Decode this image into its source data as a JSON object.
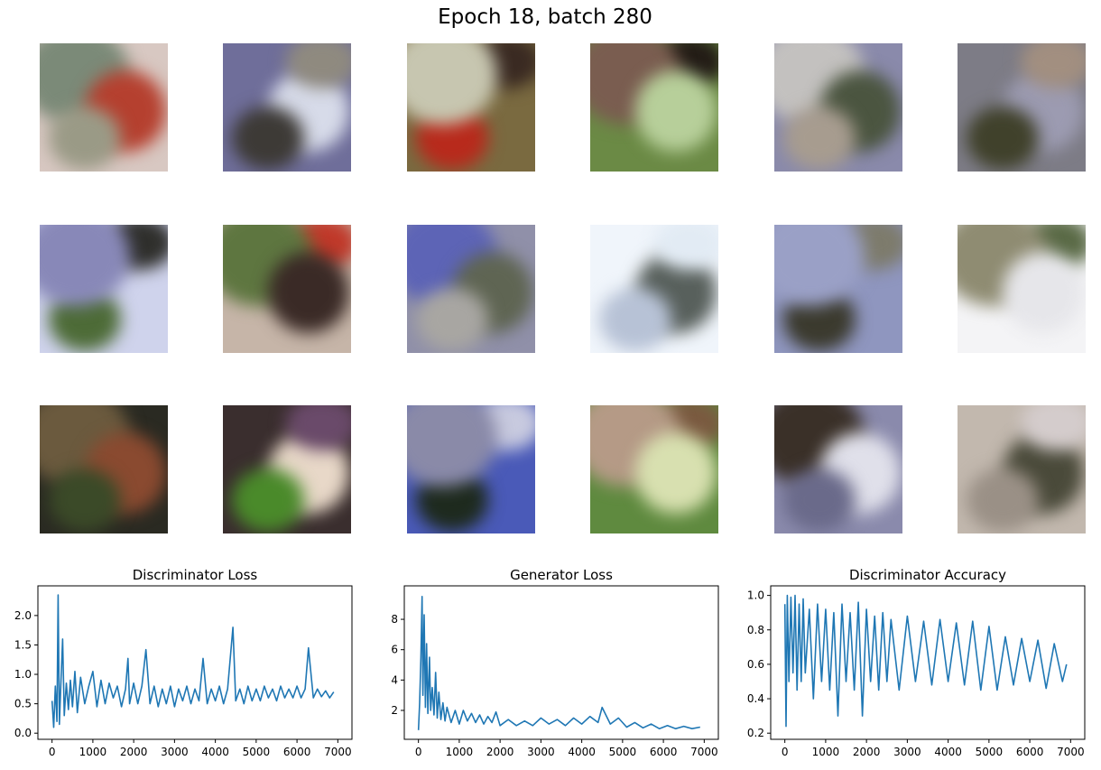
{
  "figure": {
    "title": "Epoch 18, batch 280"
  },
  "samples": [
    {
      "colors": [
        "#d8c8c2",
        "#7b8a78",
        "#b5402f",
        "#9a9a86"
      ]
    },
    {
      "colors": [
        "#6f6e9a",
        "#d7dbe9",
        "#3d3a36",
        "#8f8a7f"
      ]
    },
    {
      "colors": [
        "#7a6a40",
        "#b82a1c",
        "#3a2a22",
        "#c7c6b0"
      ]
    },
    {
      "colors": [
        "#6b8a45",
        "#231c16",
        "#7a5d50",
        "#b7cf9a"
      ]
    },
    {
      "colors": [
        "#8a8aab",
        "#c3c1bf",
        "#4b5540",
        "#a79c8f"
      ]
    },
    {
      "colors": [
        "#7d7c86",
        "#9c9bb1",
        "#40412b",
        "#a28f80"
      ]
    },
    {
      "colors": [
        "#cfd3ec",
        "#4d6b37",
        "#2f2f2c",
        "#8888b8"
      ]
    },
    {
      "colors": [
        "#c6b5a8",
        "#c0392a",
        "#5e7640",
        "#3a2a26"
      ]
    },
    {
      "colors": [
        "#9090a9",
        "#5d64b6",
        "#5f6553",
        "#a8a6a2"
      ]
    },
    {
      "colors": [
        "#f0f5fb",
        "#58605c",
        "#b7c2d6",
        "#e2ebf4"
      ]
    },
    {
      "colors": [
        "#8f96bf",
        "#3b3a2e",
        "#7d7b6c",
        "#9aa0c6"
      ]
    },
    {
      "colors": [
        "#f4f4f6",
        "#5a6a46",
        "#8f8c72",
        "#e6e6ea"
      ]
    },
    {
      "colors": [
        "#2a2a22",
        "#6b5a3e",
        "#8a4a30",
        "#3b4a28"
      ]
    },
    {
      "colors": [
        "#3a2e2e",
        "#e8d8c8",
        "#4a8a2a",
        "#6a4a6a"
      ]
    },
    {
      "colors": [
        "#4a5ab8",
        "#1e2a1e",
        "#c8cadf",
        "#8a8aa8"
      ]
    },
    {
      "colors": [
        "#5f8a3f",
        "#7a5a40",
        "#b59a86",
        "#d8e0b0"
      ]
    },
    {
      "colors": [
        "#8a8aac",
        "#3a3028",
        "#e0e0ea",
        "#6a6a8a"
      ]
    },
    {
      "colors": [
        "#c2b8ae",
        "#4a4a3a",
        "#9a9086",
        "#d4cccc"
      ]
    }
  ],
  "chart_data": [
    {
      "type": "line",
      "title": "Discriminator Loss",
      "xlim": [
        0,
        7000
      ],
      "ylim": [
        0.0,
        2.4
      ],
      "xticks": [
        0,
        1000,
        2000,
        3000,
        4000,
        5000,
        6000,
        7000
      ],
      "yticks": [
        0.0,
        0.5,
        1.0,
        1.5,
        2.0
      ],
      "ytick_labels": [
        "0.0",
        "0.5",
        "1.0",
        "1.5",
        "2.0"
      ],
      "series": [
        {
          "color": "#1f77b4",
          "x": [
            0,
            40,
            80,
            120,
            150,
            180,
            220,
            260,
            300,
            350,
            400,
            450,
            500,
            560,
            620,
            700,
            800,
            900,
            1000,
            1100,
            1200,
            1300,
            1400,
            1500,
            1600,
            1700,
            1800,
            1860,
            1900,
            2000,
            2100,
            2200,
            2300,
            2400,
            2500,
            2600,
            2700,
            2800,
            2900,
            3000,
            3100,
            3200,
            3300,
            3400,
            3500,
            3600,
            3700,
            3800,
            3900,
            4000,
            4100,
            4200,
            4300,
            4430,
            4500,
            4600,
            4700,
            4800,
            4900,
            5000,
            5100,
            5200,
            5300,
            5400,
            5500,
            5600,
            5700,
            5800,
            5900,
            6000,
            6100,
            6200,
            6280,
            6400,
            6500,
            6600,
            6700,
            6800,
            6900
          ],
          "y": [
            0.55,
            0.1,
            0.8,
            0.2,
            2.35,
            0.15,
            0.9,
            1.6,
            0.3,
            0.85,
            0.4,
            0.9,
            0.45,
            1.05,
            0.35,
            0.95,
            0.5,
            0.8,
            1.05,
            0.45,
            0.9,
            0.5,
            0.85,
            0.6,
            0.8,
            0.45,
            0.75,
            1.27,
            0.5,
            0.85,
            0.5,
            0.8,
            1.42,
            0.5,
            0.8,
            0.45,
            0.75,
            0.5,
            0.8,
            0.45,
            0.75,
            0.55,
            0.8,
            0.5,
            0.75,
            0.55,
            1.27,
            0.5,
            0.75,
            0.55,
            0.8,
            0.5,
            0.75,
            1.8,
            0.55,
            0.75,
            0.5,
            0.8,
            0.55,
            0.75,
            0.55,
            0.8,
            0.6,
            0.75,
            0.55,
            0.8,
            0.6,
            0.75,
            0.6,
            0.8,
            0.6,
            0.75,
            1.45,
            0.6,
            0.75,
            0.62,
            0.72,
            0.6,
            0.7
          ]
        }
      ]
    },
    {
      "type": "line",
      "title": "Generator Loss",
      "xlim": [
        0,
        7000
      ],
      "ylim": [
        0.5,
        9.8
      ],
      "xticks": [
        0,
        1000,
        2000,
        3000,
        4000,
        5000,
        6000,
        7000
      ],
      "yticks": [
        2,
        4,
        6,
        8
      ],
      "ytick_labels": [
        "2",
        "4",
        "6",
        "8"
      ],
      "series": [
        {
          "color": "#1f77b4",
          "x": [
            0,
            30,
            60,
            90,
            110,
            140,
            170,
            200,
            230,
            270,
            300,
            340,
            380,
            420,
            460,
            500,
            550,
            600,
            650,
            700,
            800,
            900,
            1000,
            1100,
            1200,
            1300,
            1400,
            1500,
            1600,
            1700,
            1800,
            1900,
            2000,
            2200,
            2400,
            2600,
            2800,
            3000,
            3200,
            3400,
            3600,
            3800,
            4000,
            4200,
            4400,
            4500,
            4700,
            4900,
            5100,
            5300,
            5500,
            5700,
            5900,
            6100,
            6300,
            6500,
            6700,
            6900
          ],
          "y": [
            0.7,
            2.5,
            5.5,
            9.5,
            3.0,
            8.3,
            2.2,
            6.4,
            1.8,
            5.5,
            2.0,
            3.5,
            1.7,
            4.5,
            1.5,
            3.2,
            1.4,
            2.5,
            1.3,
            2.2,
            1.2,
            2.0,
            1.1,
            2.0,
            1.3,
            1.8,
            1.2,
            1.7,
            1.1,
            1.6,
            1.2,
            1.9,
            1.0,
            1.4,
            1.0,
            1.3,
            1.0,
            1.5,
            1.1,
            1.4,
            1.0,
            1.5,
            1.1,
            1.6,
            1.2,
            2.2,
            1.1,
            1.5,
            0.9,
            1.2,
            0.85,
            1.1,
            0.8,
            1.0,
            0.8,
            0.95,
            0.8,
            0.9
          ]
        }
      ]
    },
    {
      "type": "line",
      "title": "Discriminator Accuracy",
      "xlim": [
        0,
        7000
      ],
      "ylim": [
        0.2,
        1.02
      ],
      "xticks": [
        0,
        1000,
        2000,
        3000,
        4000,
        5000,
        6000,
        7000
      ],
      "yticks": [
        0.2,
        0.4,
        0.6,
        0.8,
        1.0
      ],
      "ytick_labels": [
        "0.2",
        "0.4",
        "0.6",
        "0.8",
        "1.0"
      ],
      "series": [
        {
          "color": "#1f77b4",
          "x": [
            0,
            30,
            60,
            100,
            150,
            200,
            250,
            300,
            350,
            400,
            450,
            500,
            600,
            700,
            800,
            900,
            1000,
            1100,
            1200,
            1300,
            1400,
            1500,
            1600,
            1700,
            1800,
            1900,
            2000,
            2100,
            2200,
            2300,
            2400,
            2500,
            2600,
            2800,
            3000,
            3200,
            3400,
            3600,
            3800,
            4000,
            4200,
            4400,
            4600,
            4800,
            5000,
            5200,
            5400,
            5600,
            5800,
            6000,
            6200,
            6400,
            6600,
            6800,
            6900
          ],
          "y": [
            0.95,
            0.24,
            1.0,
            0.5,
            0.99,
            0.55,
            1.0,
            0.45,
            0.95,
            0.5,
            0.98,
            0.55,
            0.92,
            0.4,
            0.95,
            0.5,
            0.92,
            0.45,
            0.9,
            0.3,
            0.95,
            0.5,
            0.9,
            0.45,
            0.96,
            0.3,
            0.92,
            0.5,
            0.88,
            0.45,
            0.9,
            0.5,
            0.86,
            0.45,
            0.88,
            0.5,
            0.85,
            0.48,
            0.86,
            0.5,
            0.84,
            0.48,
            0.85,
            0.45,
            0.82,
            0.45,
            0.76,
            0.48,
            0.75,
            0.5,
            0.74,
            0.46,
            0.72,
            0.5,
            0.6
          ]
        }
      ]
    }
  ]
}
